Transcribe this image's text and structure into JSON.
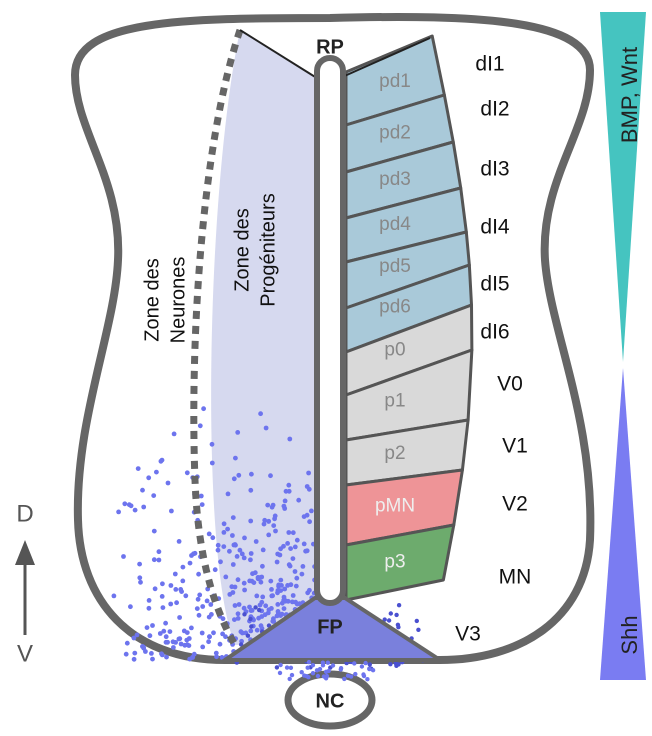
{
  "labels": {
    "roof_plate": "RP",
    "floor_plate": "FP",
    "notochord": "NC"
  },
  "zones": {
    "neurons": [
      "Zone des",
      "Neurones"
    ],
    "progenitors": [
      "Zone des",
      "Progéniteurs"
    ]
  },
  "progenitor_domains": [
    {
      "name": "pd1",
      "color": "#a9c9d9"
    },
    {
      "name": "pd2",
      "color": "#a9c9d9"
    },
    {
      "name": "pd3",
      "color": "#a9c9d9"
    },
    {
      "name": "pd4",
      "color": "#a9c9d9"
    },
    {
      "name": "pd5",
      "color": "#a9c9d9"
    },
    {
      "name": "pd6",
      "color": "#a9c9d9"
    },
    {
      "name": "p0",
      "color": "#d9d9d9"
    },
    {
      "name": "p1",
      "color": "#d9d9d9"
    },
    {
      "name": "p2",
      "color": "#d9d9d9"
    },
    {
      "name": "pMN",
      "color": "#ee9497"
    },
    {
      "name": "p3",
      "color": "#6dab6d"
    }
  ],
  "neuron_types": [
    "dI1",
    "dI2",
    "dI3",
    "dI4",
    "dI5",
    "dI6",
    "V0",
    "V1",
    "V2",
    "MN",
    "V3"
  ],
  "axis": {
    "dorsal": "D",
    "ventral": "V"
  },
  "gradients": {
    "dorsal": "BMP, Wnt",
    "ventral": "Shh"
  }
}
